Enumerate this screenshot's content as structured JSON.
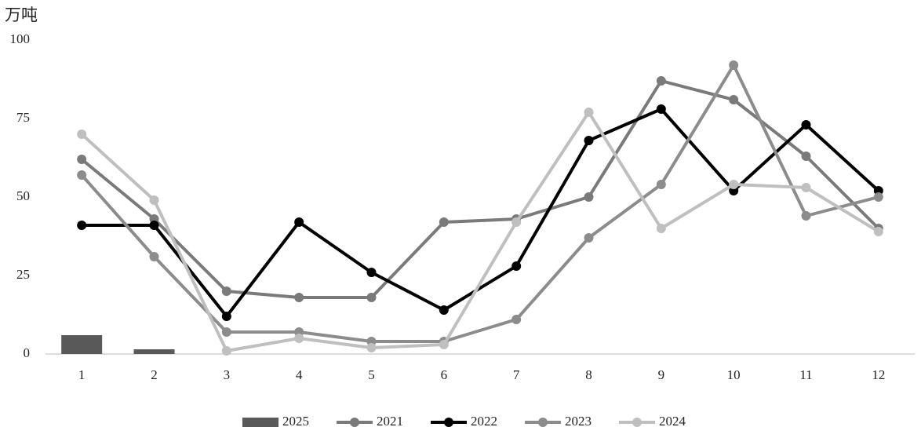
{
  "chart_data": {
    "type": "line",
    "y_unit": "万吨",
    "categories": [
      "1",
      "2",
      "3",
      "4",
      "5",
      "6",
      "7",
      "8",
      "9",
      "10",
      "11",
      "12"
    ],
    "series": [
      {
        "name": "2025",
        "type": "bar",
        "color": "#595959",
        "values": [
          6,
          1.5,
          null,
          null,
          null,
          null,
          null,
          null,
          null,
          null,
          null,
          null
        ]
      },
      {
        "name": "2021",
        "type": "line",
        "color": "#7a7a7a",
        "values": [
          62,
          43,
          20,
          18,
          18,
          42,
          43,
          50,
          87,
          81,
          63,
          40
        ]
      },
      {
        "name": "2022",
        "type": "line",
        "color": "#000000",
        "values": [
          41,
          41,
          12,
          42,
          26,
          14,
          28,
          68,
          78,
          52,
          73,
          52
        ]
      },
      {
        "name": "2023",
        "type": "line",
        "color": "#8c8c8c",
        "values": [
          57,
          31,
          7,
          7,
          4,
          4,
          11,
          37,
          54,
          92,
          44,
          50
        ]
      },
      {
        "name": "2024",
        "type": "line",
        "color": "#bfbfbf",
        "values": [
          70,
          49,
          1,
          5,
          2,
          3,
          42,
          77,
          40,
          54,
          53,
          39
        ]
      }
    ],
    "ylim": [
      0,
      100
    ],
    "yticks": [
      0,
      25,
      50,
      75,
      100
    ],
    "grid": false,
    "legend": "bottom"
  }
}
